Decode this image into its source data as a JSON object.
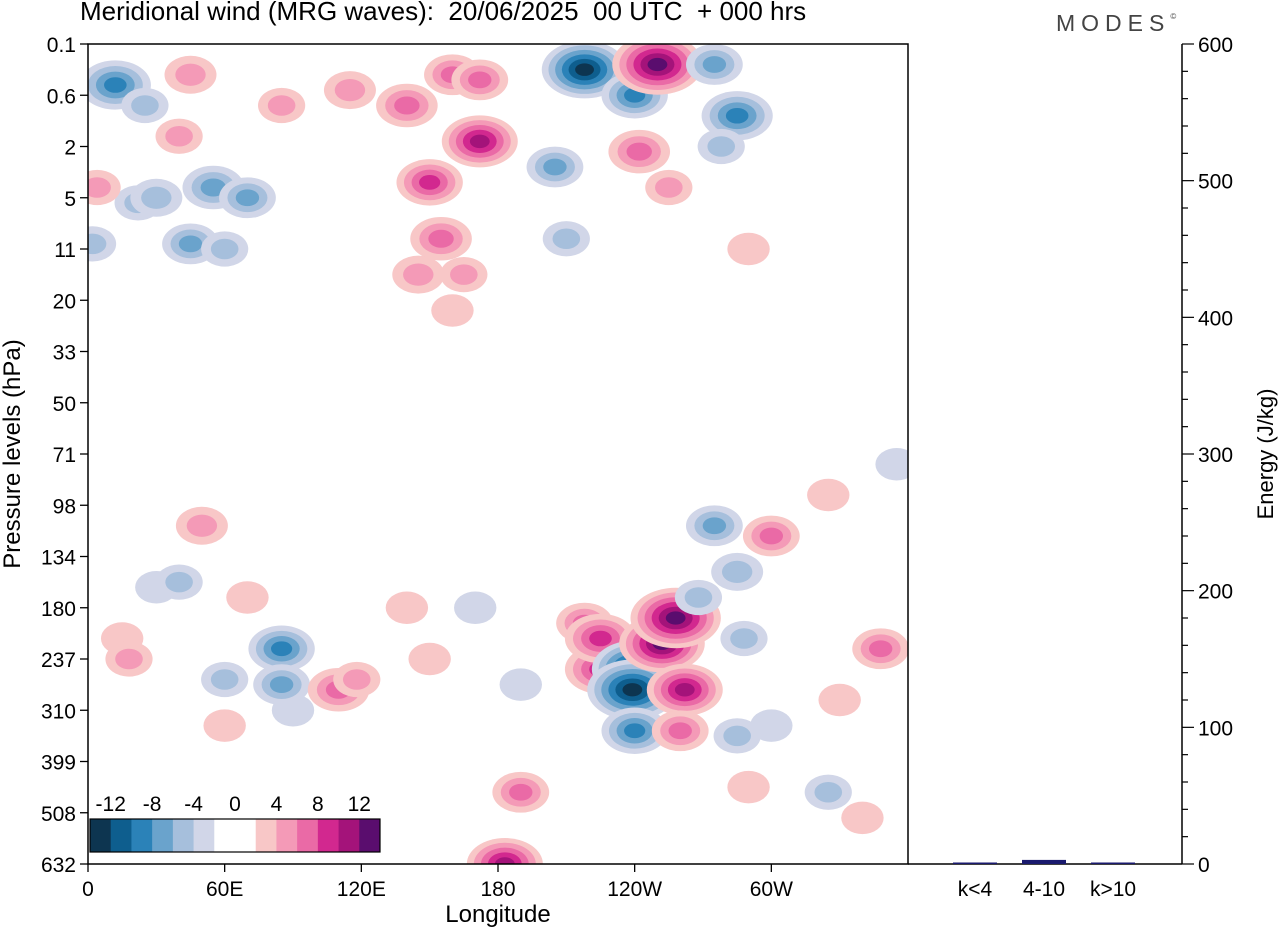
{
  "header": {
    "title": "Meridional wind (MRG waves):  20/06/2025  00 UTC  + 000 hrs",
    "logo": "MODES"
  },
  "chart_data": [
    {
      "type": "heatmap",
      "title": "Meridional wind (MRG waves):  20/06/2025  00 UTC  + 000 hrs",
      "xlabel": "Longitude",
      "ylabel": "Pressure levels (hPa)",
      "x_ticks": [
        "0",
        "60E",
        "120E",
        "180",
        "120W",
        "60W"
      ],
      "y_ticks": [
        "0.1",
        "0.6",
        "2",
        "5",
        "11",
        "20",
        "33",
        "50",
        "71",
        "98",
        "134",
        "180",
        "237",
        "310",
        "399",
        "508",
        "632"
      ],
      "colorbar": {
        "labels": [
          "-12",
          "-8",
          "-4",
          "0",
          "4",
          "8",
          "12"
        ],
        "colors": [
          "#0d3550",
          "#0e5e8e",
          "#2b82b8",
          "#6aa3cc",
          "#a6bfdc",
          "#d1d6e8",
          "#ffffff",
          "#ffffff",
          "#f8c7c7",
          "#f49ab7",
          "#ea6aa6",
          "#d2288f",
          "#a4137a",
          "#5a0d6e"
        ]
      },
      "blobs": [
        {
          "lon": 12,
          "lev": 0.8,
          "value": -9
        },
        {
          "lon": 25,
          "lev": 1.2,
          "value": -4
        },
        {
          "lon": 45,
          "lev": 0.6,
          "value": 5
        },
        {
          "lon": 40,
          "lev": 1.8,
          "value": 4
        },
        {
          "lon": 22,
          "lev": 3.1,
          "value": -4
        },
        {
          "lon": 30,
          "lev": 3.0,
          "value": -5
        },
        {
          "lon": 45,
          "lev": 3.9,
          "value": -6
        },
        {
          "lon": 55,
          "lev": 2.8,
          "value": -7
        },
        {
          "lon": 70,
          "lev": 3.0,
          "value": -6
        },
        {
          "lon": 60,
          "lev": 4.0,
          "value": -4
        },
        {
          "lon": 4,
          "lev": 2.8,
          "value": 4
        },
        {
          "lon": 2,
          "lev": 3.9,
          "value": -4
        },
        {
          "lon": 85,
          "lev": 1.2,
          "value": 4
        },
        {
          "lon": 115,
          "lev": 0.9,
          "value": 5
        },
        {
          "lon": 140,
          "lev": 1.2,
          "value": 7
        },
        {
          "lon": 160,
          "lev": 0.6,
          "value": 6
        },
        {
          "lon": 172,
          "lev": 0.7,
          "value": 6
        },
        {
          "lon": 150,
          "lev": 2.7,
          "value": 8
        },
        {
          "lon": 172,
          "lev": 1.9,
          "value": 10
        },
        {
          "lon": 155,
          "lev": 3.8,
          "value": 7
        },
        {
          "lon": 145,
          "lev": 4.5,
          "value": 5
        },
        {
          "lon": 165,
          "lev": 4.5,
          "value": 4
        },
        {
          "lon": 160,
          "lev": 5.2,
          "value": 3
        },
        {
          "lon": 205,
          "lev": 2.4,
          "value": -6
        },
        {
          "lon": 210,
          "lev": 3.8,
          "value": -4
        },
        {
          "lon": 218,
          "lev": 0.5,
          "value": -12
        },
        {
          "lon": 240,
          "lev": 1.0,
          "value": -8
        },
        {
          "lon": 250,
          "lev": 0.4,
          "value": 13
        },
        {
          "lon": 242,
          "lev": 2.1,
          "value": 7
        },
        {
          "lon": 255,
          "lev": 2.8,
          "value": 4
        },
        {
          "lon": 275,
          "lev": 0.4,
          "value": -6
        },
        {
          "lon": 285,
          "lev": 1.4,
          "value": -9
        },
        {
          "lon": 278,
          "lev": 2.0,
          "value": -4
        },
        {
          "lon": 290,
          "lev": 4.0,
          "value": 3
        },
        {
          "lon": 30,
          "lev": 10.6,
          "value": -3
        },
        {
          "lon": 60,
          "lev": 12.4,
          "value": -4
        },
        {
          "lon": 90,
          "lev": 13.0,
          "value": -3
        },
        {
          "lon": 70,
          "lev": 10.8,
          "value": 3
        },
        {
          "lon": 50,
          "lev": 9.4,
          "value": 5
        },
        {
          "lon": 15,
          "lev": 11.6,
          "value": 3
        },
        {
          "lon": 18,
          "lev": 12.0,
          "value": 4
        },
        {
          "lon": 40,
          "lev": 10.5,
          "value": -4
        },
        {
          "lon": 60,
          "lev": 13.3,
          "value": 3
        },
        {
          "lon": 85,
          "lev": 11.8,
          "value": -8
        },
        {
          "lon": 85,
          "lev": 12.5,
          "value": -6
        },
        {
          "lon": 110,
          "lev": 12.6,
          "value": 7
        },
        {
          "lon": 118,
          "lev": 12.4,
          "value": 4
        },
        {
          "lon": 140,
          "lev": 11.0,
          "value": 3
        },
        {
          "lon": 150,
          "lev": 12.0,
          "value": 3
        },
        {
          "lon": 170,
          "lev": 11.0,
          "value": -3
        },
        {
          "lon": 190,
          "lev": 12.5,
          "value": -3
        },
        {
          "lon": 190,
          "lev": 14.6,
          "value": 6
        },
        {
          "lon": 183,
          "lev": 16.0,
          "value": 10
        },
        {
          "lon": 185,
          "lev": 16.4,
          "value": 4
        },
        {
          "lon": 218,
          "lev": 11.3,
          "value": 6
        },
        {
          "lon": 225,
          "lev": 12.2,
          "value": 9
        },
        {
          "lon": 225,
          "lev": 11.6,
          "value": 9
        },
        {
          "lon": 240,
          "lev": 12.2,
          "value": -12
        },
        {
          "lon": 239,
          "lev": 12.6,
          "value": -13
        },
        {
          "lon": 240,
          "lev": 13.4,
          "value": -8
        },
        {
          "lon": 252,
          "lev": 11.7,
          "value": 12
        },
        {
          "lon": 258,
          "lev": 11.2,
          "value": 13
        },
        {
          "lon": 262,
          "lev": 12.6,
          "value": 10
        },
        {
          "lon": 260,
          "lev": 13.4,
          "value": 6
        },
        {
          "lon": 275,
          "lev": 9.4,
          "value": -6
        },
        {
          "lon": 285,
          "lev": 10.3,
          "value": -5
        },
        {
          "lon": 268,
          "lev": 10.8,
          "value": -4
        },
        {
          "lon": 288,
          "lev": 11.6,
          "value": -4
        },
        {
          "lon": 300,
          "lev": 9.6,
          "value": 6
        },
        {
          "lon": 325,
          "lev": 8.8,
          "value": 3
        },
        {
          "lon": 348,
          "lev": 11.8,
          "value": 6
        },
        {
          "lon": 355,
          "lev": 8.2,
          "value": -3
        },
        {
          "lon": 285,
          "lev": 13.5,
          "value": -4
        },
        {
          "lon": 290,
          "lev": 14.5,
          "value": 3
        },
        {
          "lon": 300,
          "lev": 13.3,
          "value": -3
        },
        {
          "lon": 340,
          "lev": 15.1,
          "value": 3
        },
        {
          "lon": 325,
          "lev": 14.6,
          "value": -4
        },
        {
          "lon": 330,
          "lev": 12.8,
          "value": 3
        }
      ]
    },
    {
      "type": "bar",
      "categories": [
        "k<4",
        "4-10",
        "k>10"
      ],
      "values": [
        1,
        3,
        1
      ],
      "ylabel": "Energy (J/kg)",
      "ylim": [
        0,
        600
      ],
      "y_ticks": [
        "0",
        "100",
        "200",
        "300",
        "400",
        "500",
        "600"
      ],
      "bar_color": "#1a1a6e"
    }
  ]
}
